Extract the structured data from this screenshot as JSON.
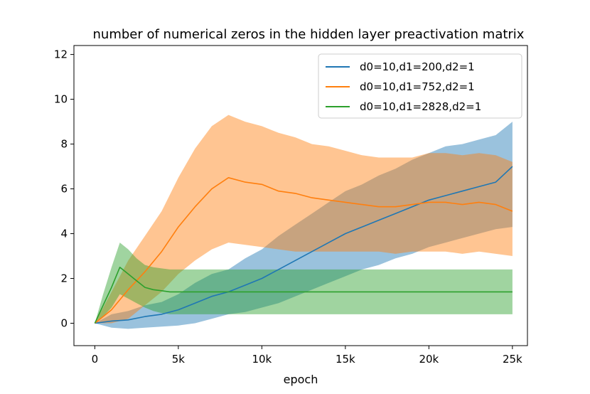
{
  "chart_data": {
    "type": "line",
    "title": "number of numerical zeros in the hidden layer preactivation matrix",
    "xlabel": "epoch",
    "ylabel": "",
    "xlim": [
      -1250,
      25900
    ],
    "ylim": [
      -1.0,
      12.4
    ],
    "x_ticks": [
      0,
      5000,
      10000,
      15000,
      20000,
      25000
    ],
    "x_tick_labels": [
      "0",
      "5k",
      "10k",
      "15k",
      "20k",
      "25k"
    ],
    "y_ticks": [
      0,
      2,
      4,
      6,
      8,
      10,
      12
    ],
    "y_tick_labels": [
      "0",
      "2",
      "4",
      "6",
      "8",
      "10",
      "12"
    ],
    "grid": false,
    "legend_position": "top-right",
    "series": [
      {
        "name": "d0=10,d1=200,d2=1",
        "color": "#1f77b4",
        "x": [
          0,
          1000,
          2000,
          3000,
          4000,
          5000,
          6000,
          7000,
          8000,
          9000,
          10000,
          11000,
          12000,
          13000,
          14000,
          15000,
          16000,
          17000,
          18000,
          19000,
          20000,
          21000,
          22000,
          23000,
          24000,
          25000
        ],
        "mean": [
          0,
          0.1,
          0.15,
          0.3,
          0.4,
          0.6,
          0.9,
          1.2,
          1.4,
          1.7,
          2.0,
          2.4,
          2.8,
          3.2,
          3.6,
          4.0,
          4.3,
          4.6,
          4.9,
          5.2,
          5.5,
          5.7,
          5.9,
          6.1,
          6.3,
          7.0
        ],
        "lower": [
          0,
          -0.2,
          -0.25,
          -0.2,
          -0.15,
          -0.1,
          0.0,
          0.2,
          0.4,
          0.5,
          0.7,
          0.9,
          1.2,
          1.5,
          1.8,
          2.1,
          2.4,
          2.6,
          2.9,
          3.1,
          3.4,
          3.6,
          3.8,
          4.0,
          4.2,
          4.3
        ],
        "upper": [
          0,
          0.4,
          0.55,
          0.8,
          0.95,
          1.3,
          1.8,
          2.2,
          2.4,
          2.9,
          3.3,
          3.9,
          4.4,
          4.9,
          5.4,
          5.9,
          6.2,
          6.6,
          6.9,
          7.3,
          7.6,
          7.9,
          8.0,
          8.2,
          8.4,
          9.0
        ]
      },
      {
        "name": "d0=10,d1=752,d2=1",
        "color": "#ff7f0e",
        "x": [
          0,
          1000,
          2000,
          3000,
          4000,
          5000,
          6000,
          7000,
          8000,
          9000,
          10000,
          11000,
          12000,
          13000,
          14000,
          15000,
          16000,
          17000,
          18000,
          19000,
          20000,
          21000,
          22000,
          23000,
          24000,
          25000
        ],
        "mean": [
          0,
          0.6,
          1.5,
          2.3,
          3.2,
          4.3,
          5.2,
          6.0,
          6.5,
          6.3,
          6.2,
          5.9,
          5.8,
          5.6,
          5.5,
          5.4,
          5.3,
          5.2,
          5.2,
          5.3,
          5.4,
          5.4,
          5.3,
          5.4,
          5.3,
          5.0
        ],
        "lower": [
          0,
          0.0,
          0.2,
          0.8,
          1.4,
          2.2,
          2.8,
          3.3,
          3.6,
          3.5,
          3.4,
          3.3,
          3.2,
          3.2,
          3.2,
          3.2,
          3.2,
          3.2,
          3.1,
          3.2,
          3.2,
          3.2,
          3.1,
          3.2,
          3.1,
          3.0
        ],
        "upper": [
          0,
          1.4,
          2.8,
          3.9,
          5.0,
          6.5,
          7.8,
          8.8,
          9.3,
          9.0,
          8.8,
          8.5,
          8.3,
          8.0,
          7.9,
          7.7,
          7.5,
          7.4,
          7.4,
          7.4,
          7.6,
          7.6,
          7.5,
          7.6,
          7.5,
          7.2
        ]
      },
      {
        "name": "d0=10,d1=2828,d2=1",
        "color": "#2ca02c",
        "x": [
          0,
          500,
          1000,
          1500,
          2000,
          2500,
          3000,
          3500,
          4000,
          4500,
          5000,
          7500,
          10000,
          12500,
          15000,
          17500,
          20000,
          22500,
          25000
        ],
        "mean": [
          0,
          0.8,
          1.6,
          2.5,
          2.2,
          1.9,
          1.6,
          1.5,
          1.45,
          1.4,
          1.4,
          1.4,
          1.4,
          1.4,
          1.4,
          1.4,
          1.4,
          1.4,
          1.4
        ],
        "lower": [
          0,
          0.3,
          0.7,
          1.3,
          1.1,
          0.9,
          0.7,
          0.55,
          0.45,
          0.4,
          0.4,
          0.4,
          0.4,
          0.4,
          0.4,
          0.4,
          0.4,
          0.4,
          0.4
        ],
        "upper": [
          0,
          1.3,
          2.5,
          3.6,
          3.3,
          2.9,
          2.6,
          2.5,
          2.45,
          2.4,
          2.4,
          2.4,
          2.4,
          2.4,
          2.4,
          2.4,
          2.4,
          2.4,
          2.4
        ]
      }
    ]
  }
}
